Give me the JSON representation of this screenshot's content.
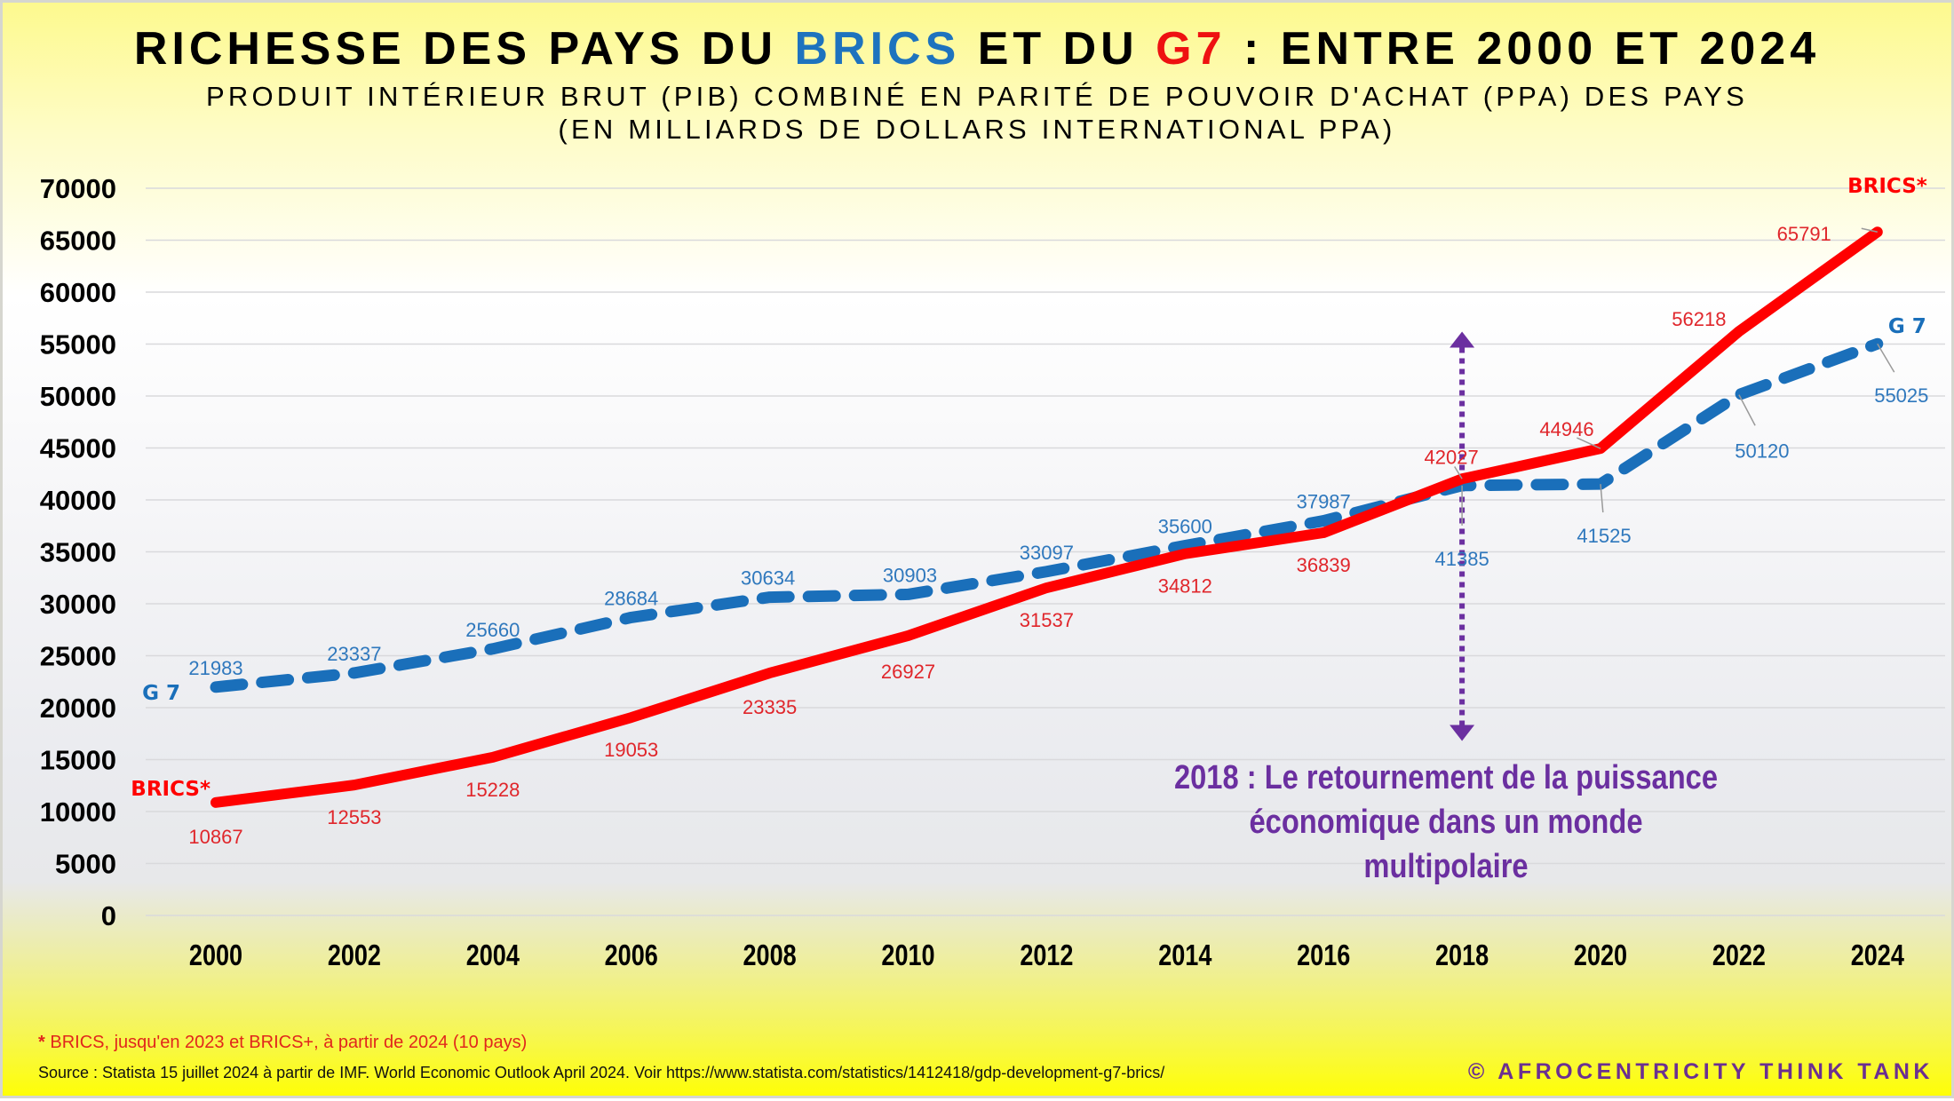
{
  "header": {
    "title_parts": [
      "RICHESSE DES PAYS DU ",
      "BRICS",
      " ET DU ",
      "G7",
      " : ENTRE 2000 ET 2024"
    ],
    "subtitle_line1": "PRODUIT INTÉRIEUR BRUT (PIB) COMBINÉ EN PARITÉ DE POUVOIR D'ACHAT (PPA) DES PAYS",
    "subtitle_line2": "(EN MILLIARDS DE DOLLARS INTERNATIONAL PPA)"
  },
  "colors": {
    "brics": "#ff0000",
    "g7": "#1a6fba",
    "brics_label": "#e0262b",
    "g7_label": "#2f78bd",
    "annotation": "#6b2fa0",
    "gridline": "#d9d9dc"
  },
  "chart_data": {
    "type": "line",
    "title": "RICHESSE DES PAYS DU BRICS ET DU G7 : ENTRE 2000 ET 2024",
    "subtitle": "PRODUIT INTÉRIEUR BRUT (PIB) COMBINÉ EN PARITÉ DE POUVOIR D'ACHAT (PPA) DES PAYS (EN MILLIARDS DE DOLLARS INTERNATIONAL PPA)",
    "xlabel": "",
    "ylabel": "",
    "x": [
      "2000",
      "2002",
      "2004",
      "2006",
      "2008",
      "2010",
      "2012",
      "2014",
      "2016",
      "2018",
      "2020",
      "2022",
      "2024"
    ],
    "ylim": [
      0,
      70000
    ],
    "yticks": [
      0,
      5000,
      10000,
      15000,
      20000,
      25000,
      30000,
      35000,
      40000,
      45000,
      50000,
      55000,
      60000,
      65000,
      70000
    ],
    "grid": true,
    "series": [
      {
        "name": "BRICS*",
        "style": "solid",
        "color": "#ff0000",
        "values": [
          10867,
          12553,
          15228,
          19053,
          23335,
          26927,
          31537,
          34812,
          36839,
          42027,
          44946,
          56218,
          65791
        ],
        "start_label": "BRICS*",
        "end_label": "BRICS*"
      },
      {
        "name": "G 7",
        "style": "dashed",
        "color": "#1a6fba",
        "values": [
          21983,
          23337,
          25660,
          28684,
          30634,
          30903,
          33097,
          35600,
          37987,
          41385,
          41525,
          50120,
          55025
        ],
        "start_label": "G 7",
        "end_label": "G 7"
      }
    ],
    "annotations": [
      {
        "type": "double-arrow-vertical-dotted",
        "x": "2018",
        "y_range": [
          16800,
          56200
        ],
        "color": "#6b2fa0"
      },
      {
        "type": "text",
        "lines": [
          "2018 : Le retournement de la puissance",
          "économique dans un monde multipolaire"
        ],
        "color": "#6b2fa0"
      }
    ]
  },
  "footer": {
    "note_star": "*",
    "note_text": " BRICS, jusqu'en 2023 et BRICS+, à partir de 2024 (10 pays)",
    "source": "Source : Statista 15 juillet 2024 à partir de IMF. World Economic Outlook April 2024. Voir https://www.statista.com/statistics/1412418/gdp-development-g7-brics/",
    "copyright": "© AFROCENTRICITY THINK TANK"
  }
}
